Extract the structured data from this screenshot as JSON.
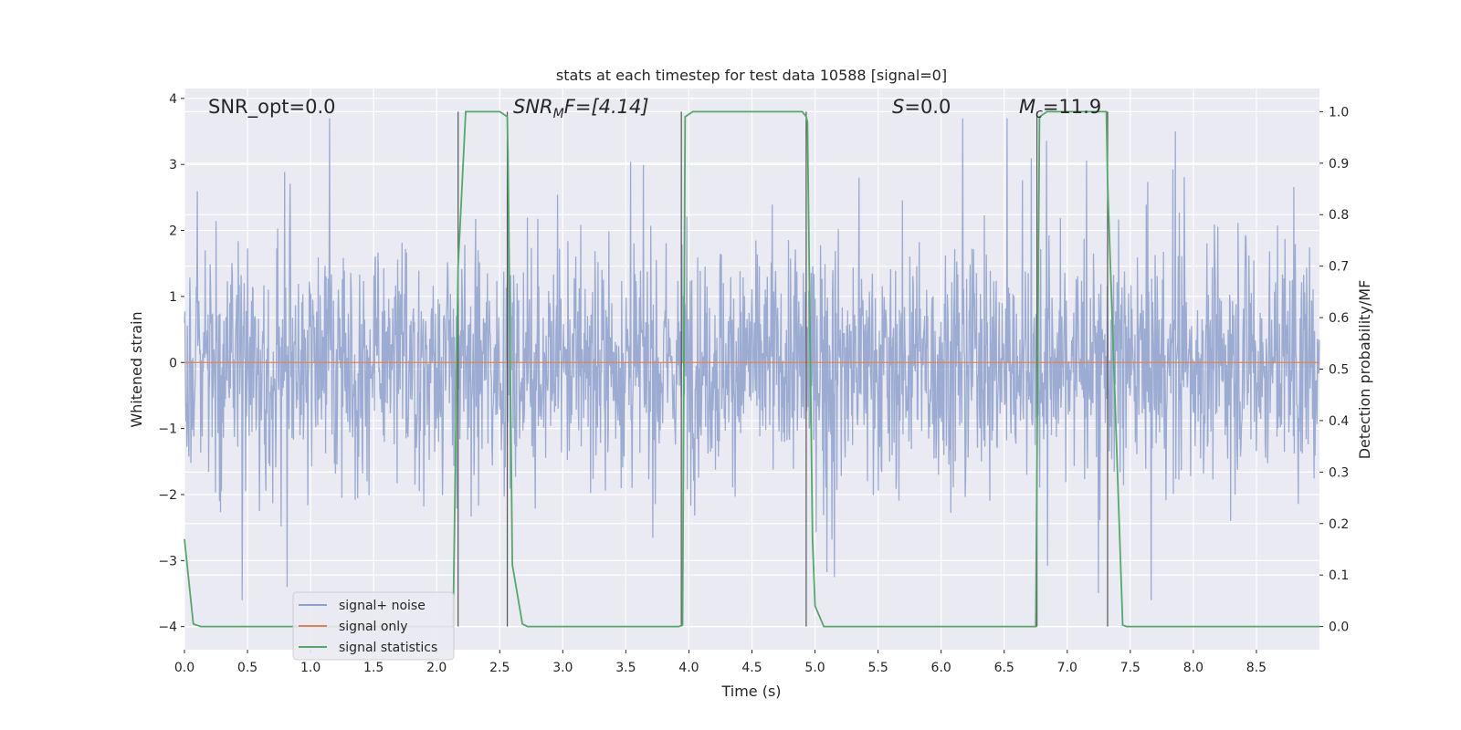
{
  "chart_data": {
    "type": "line",
    "title": "stats at each timestep for test data 10588 [signal=0]",
    "xlabel": "Time (s)",
    "ylabel": "Whitened strain",
    "y2label": "Detection probability/MF",
    "xlim": [
      0.0,
      9.0
    ],
    "ylim": [
      -4.35,
      4.15
    ],
    "y2lim": [
      -0.045,
      1.045
    ],
    "grid": true,
    "legend_position": "lower-left",
    "x_ticks": [
      "0.0",
      "0.5",
      "1.0",
      "1.5",
      "2.0",
      "2.5",
      "3.0",
      "3.5",
      "4.0",
      "4.5",
      "5.0",
      "5.5",
      "6.0",
      "6.5",
      "7.0",
      "7.5",
      "8.0",
      "8.5"
    ],
    "x_tick_values": [
      0.0,
      0.5,
      1.0,
      1.5,
      2.0,
      2.5,
      3.0,
      3.5,
      4.0,
      4.5,
      5.0,
      5.5,
      6.0,
      6.5,
      7.0,
      7.5,
      8.0,
      8.5
    ],
    "y_ticks": [
      "−4",
      "−3",
      "−2",
      "−1",
      "0",
      "1",
      "2",
      "3",
      "4"
    ],
    "y_tick_values": [
      -4,
      -3,
      -2,
      -1,
      0,
      1,
      2,
      3,
      4
    ],
    "y2_ticks": [
      "0.0",
      "0.1",
      "0.2",
      "0.3",
      "0.4",
      "0.5",
      "0.6",
      "0.7",
      "0.8",
      "0.9",
      "1.0"
    ],
    "y2_tick_values": [
      0.0,
      0.1,
      0.2,
      0.3,
      0.4,
      0.5,
      0.6,
      0.7,
      0.8,
      0.9,
      1.0
    ],
    "annotations": {
      "snr_opt": "SNR_opt=0.0",
      "snr_mf_base": "SNR",
      "snr_mf_sub": "M",
      "snr_mf_rest": "F=[4.14]",
      "s_italic": "S",
      "s_rest": "=0.0",
      "mc_base": "M",
      "mc_sub": "c",
      "mc_rest": "=11.9"
    },
    "series": [
      {
        "name": "signal+ noise",
        "color": "#8da0cb",
        "kind": "noise",
        "amplitude_typical": 1.5,
        "amplitude_peak_max": 3.7,
        "amplitude_peak_min": -3.6
      },
      {
        "name": "signal only",
        "color": "#dd8452",
        "kind": "flat",
        "value": 0.0
      },
      {
        "name": "signal statistics",
        "color": "#55a868",
        "axis": "right",
        "x": [
          0.0,
          0.07,
          0.13,
          2.13,
          2.17,
          2.23,
          2.5,
          2.56,
          2.57,
          2.6,
          2.68,
          2.72,
          3.92,
          3.95,
          3.97,
          4.03,
          4.05,
          4.9,
          4.93,
          4.94,
          4.98,
          5.0,
          5.07,
          6.74,
          6.75,
          6.78,
          6.84,
          6.88,
          7.31,
          7.32,
          7.44,
          7.47,
          9.0
        ],
        "y": [
          0.17,
          0.005,
          0.0,
          0.0,
          0.7,
          1.0,
          1.0,
          0.99,
          0.83,
          0.12,
          0.005,
          0.0,
          0.0,
          0.003,
          0.99,
          1.0,
          1.0,
          1.0,
          0.99,
          0.98,
          0.17,
          0.04,
          0.0,
          0.0,
          0.0,
          0.99,
          1.0,
          1.0,
          1.0,
          0.86,
          0.003,
          0.0,
          0.0
        ]
      }
    ],
    "vertical_markers": [
      2.17,
      2.56,
      3.94,
      4.93,
      6.76,
      7.32
    ],
    "vertical_marker_range": [
      0.0,
      1.0
    ]
  }
}
